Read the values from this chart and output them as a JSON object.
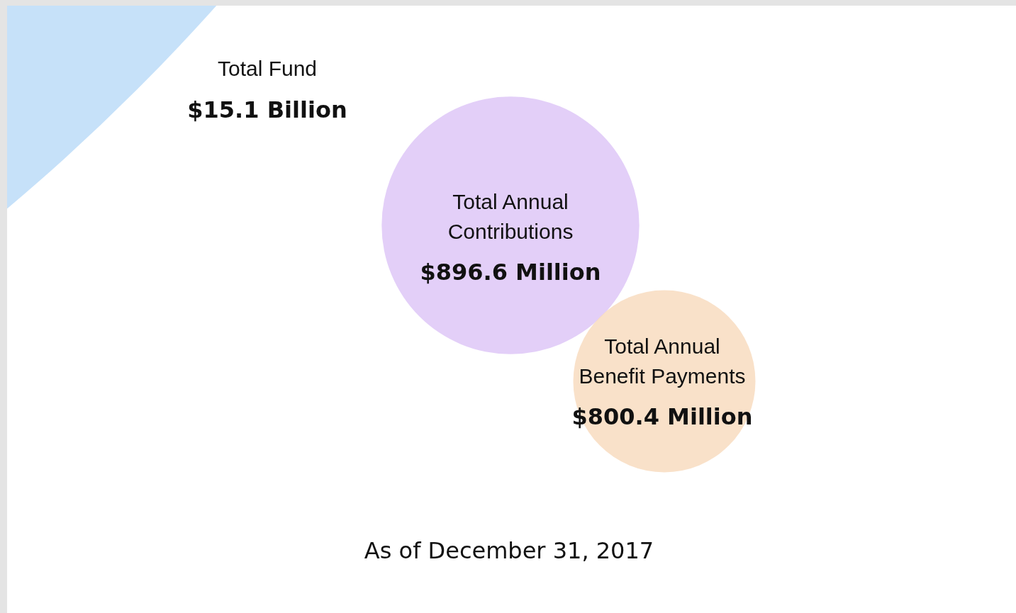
{
  "chart_data": {
    "type": "other",
    "categories": [
      "Total Fund",
      "Total Annual Contributions",
      "Total Annual Benefit Payments"
    ],
    "values": [
      15.1,
      896.6,
      800.4
    ],
    "value_labels": [
      "$15.1 Billion",
      "$896.6 Million",
      "$800.4 Million"
    ],
    "colors": [
      "#c6e1f9",
      "#dcc3f6",
      "#f8d9bb"
    ],
    "annotations": [
      "As of December 31, 2017"
    ]
  }
}
